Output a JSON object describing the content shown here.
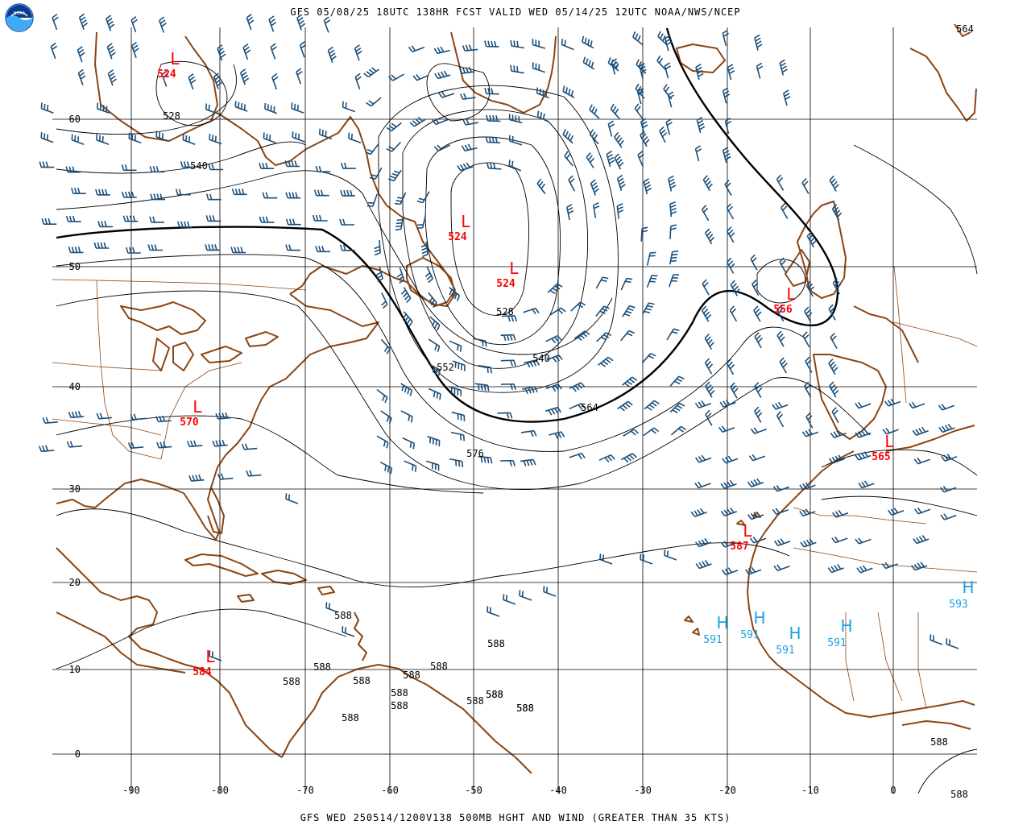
{
  "header": {
    "title": "GFS 05/08/25 18UTC 138HR FCST VALID WED 05/14/25 12UTC NOAA/NWS/NCEP",
    "logo_text": "NOAA"
  },
  "footer": {
    "title": "GFS WED 250514/1200V138 500MB HGHT AND WIND (GREATER THAN 35 KTS)"
  },
  "colors": {
    "coast": "#8B4513",
    "border": "#8B4513",
    "grid": "#000000",
    "barb": "#1b4f7a",
    "low": "#ff0000",
    "high": "#1aa3e0",
    "contour": "#000000"
  },
  "axes": {
    "lon_labels": [
      "-90",
      "-80",
      "-70",
      "-60",
      "-50",
      "-40",
      "-30",
      "-20",
      "-10",
      "0"
    ],
    "lat_labels": [
      "60",
      "50",
      "40",
      "30",
      "20",
      "10",
      "0"
    ]
  },
  "lows": [
    {
      "symbol": "L",
      "value": "524"
    },
    {
      "symbol": "L",
      "value": "524"
    },
    {
      "symbol": "L",
      "value": "524"
    },
    {
      "symbol": "L",
      "value": "570"
    },
    {
      "symbol": "L",
      "value": "556"
    },
    {
      "symbol": "L",
      "value": "565"
    },
    {
      "symbol": "L",
      "value": "587"
    },
    {
      "symbol": "L",
      "value": "584"
    }
  ],
  "highs": [
    {
      "symbol": "H",
      "value": "591"
    },
    {
      "symbol": "H",
      "value": "591"
    },
    {
      "symbol": "H",
      "value": "591"
    },
    {
      "symbol": "H",
      "value": "591"
    },
    {
      "symbol": "H",
      "value": "593"
    }
  ],
  "contour_labels": [
    "528",
    "540",
    "528",
    "540",
    "552",
    "564",
    "576",
    "588",
    "588",
    "588",
    "588",
    "588",
    "588",
    "588",
    "588",
    "588",
    "588",
    "588",
    "588",
    "588",
    "588",
    "564",
    "588",
    "588",
    "588"
  ]
}
